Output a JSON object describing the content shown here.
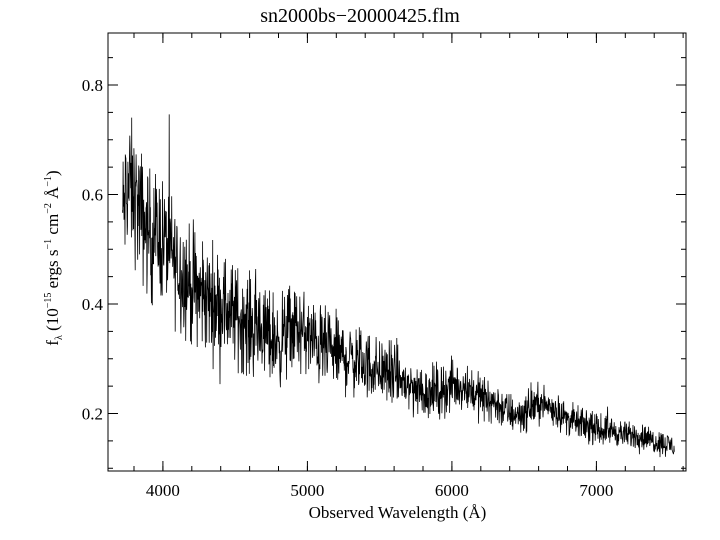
{
  "chart_data": {
    "type": "line",
    "title": "sn2000bs−20000425.flm",
    "xlabel": "Observed Wavelength (Å)",
    "ylabel": {
      "f": "f",
      "lambda": "λ",
      "open": " (10",
      "exp1": "−15",
      "units1": " ergs s",
      "exp2": "−1",
      "units2": " cm",
      "exp3": "−2",
      "units3": " Å",
      "exp4": "−1",
      "close": ")"
    },
    "xlim": [
      3620,
      7620
    ],
    "ylim": [
      0.095,
      0.895
    ],
    "xticks": [
      4000,
      5000,
      6000,
      7000
    ],
    "yticks": [
      0.2,
      0.4,
      0.6,
      0.8
    ],
    "xtick_labels": [
      "4000",
      "5000",
      "6000",
      "7000"
    ],
    "ytick_labels": [
      "0.2",
      "0.4",
      "0.6",
      "0.8"
    ],
    "x_minor_step": 200,
    "y_minor_step": 0.05,
    "series": [
      {
        "name": "sn2000bs spectrum",
        "x_range": [
          3720,
          7540
        ],
        "envelope": [
          [
            3720,
            0.56
          ],
          [
            3760,
            0.62
          ],
          [
            3800,
            0.6
          ],
          [
            3850,
            0.56
          ],
          [
            3900,
            0.53
          ],
          [
            4000,
            0.52
          ],
          [
            4100,
            0.47
          ],
          [
            4200,
            0.43
          ],
          [
            4300,
            0.41
          ],
          [
            4400,
            0.4
          ],
          [
            4500,
            0.38
          ],
          [
            4600,
            0.36
          ],
          [
            4700,
            0.35
          ],
          [
            4800,
            0.33
          ],
          [
            4900,
            0.36
          ],
          [
            5000,
            0.34
          ],
          [
            5100,
            0.32
          ],
          [
            5200,
            0.31
          ],
          [
            5300,
            0.3
          ],
          [
            5400,
            0.29
          ],
          [
            5500,
            0.28
          ],
          [
            5600,
            0.27
          ],
          [
            5700,
            0.25
          ],
          [
            5800,
            0.24
          ],
          [
            5900,
            0.24
          ],
          [
            6000,
            0.25
          ],
          [
            6100,
            0.25
          ],
          [
            6200,
            0.23
          ],
          [
            6300,
            0.22
          ],
          [
            6400,
            0.2
          ],
          [
            6500,
            0.2
          ],
          [
            6600,
            0.22
          ],
          [
            6700,
            0.21
          ],
          [
            6800,
            0.19
          ],
          [
            6900,
            0.18
          ],
          [
            7000,
            0.17
          ],
          [
            7100,
            0.17
          ],
          [
            7200,
            0.16
          ],
          [
            7300,
            0.16
          ],
          [
            7400,
            0.15
          ],
          [
            7540,
            0.14
          ]
        ],
        "noise_blue": 0.09,
        "noise_red": 0.02
      }
    ]
  }
}
